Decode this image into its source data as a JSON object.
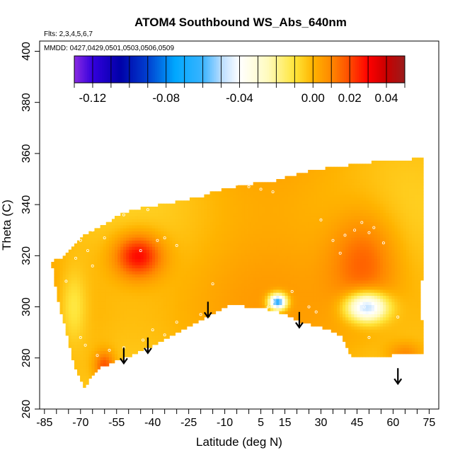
{
  "chart_data": {
    "type": "heatmap",
    "title": "ATOM4 Southbound WS_Abs_640nm",
    "xlabel": "Latitude (deg N)",
    "ylabel": "Theta (C)",
    "xlim": [
      -87,
      79
    ],
    "ylim": [
      260,
      404
    ],
    "x_ticks": [
      -85,
      -70,
      -55,
      -40,
      -25,
      -10,
      5,
      15,
      30,
      45,
      60,
      75
    ],
    "x_minor_step": 5,
    "y_ticks": [
      260,
      280,
      300,
      320,
      340,
      360,
      380,
      400
    ],
    "notes": [
      "Flts: 2,3,4,5,6,7",
      "MMDD: 0427,0429,0501,0503,0506,0509"
    ],
    "colorbar": {
      "range": [
        -0.13,
        0.05
      ],
      "ticks": [
        -0.12,
        -0.08,
        -0.04,
        0.0,
        0.02,
        0.04
      ],
      "tick_labels": [
        "-0.12",
        "-0.08",
        "-0.04",
        "0.00",
        "0.02",
        "0.04"
      ],
      "bins": [
        -0.13,
        -0.12,
        -0.11,
        -0.1,
        -0.09,
        -0.08,
        -0.07,
        -0.06,
        -0.05,
        -0.04,
        -0.03,
        -0.02,
        -0.01,
        0.0,
        0.01,
        0.02,
        0.03,
        0.04,
        0.05
      ],
      "stops": [
        {
          "v": -0.13,
          "c": "#8a2be2"
        },
        {
          "v": -0.12,
          "c": "#3300dd"
        },
        {
          "v": -0.105,
          "c": "#0000a8"
        },
        {
          "v": -0.09,
          "c": "#0040d0"
        },
        {
          "v": -0.075,
          "c": "#00a8ff"
        },
        {
          "v": -0.06,
          "c": "#3ab4ff"
        },
        {
          "v": -0.05,
          "c": "#b8dcff"
        },
        {
          "v": -0.04,
          "c": "#ffffff"
        },
        {
          "v": -0.025,
          "c": "#fffbc0"
        },
        {
          "v": -0.01,
          "c": "#ffe53a"
        },
        {
          "v": 0.0,
          "c": "#ffb300"
        },
        {
          "v": 0.01,
          "c": "#ff8800"
        },
        {
          "v": 0.02,
          "c": "#ff4a00"
        },
        {
          "v": 0.03,
          "c": "#ff0000"
        },
        {
          "v": 0.04,
          "c": "#c80000"
        },
        {
          "v": 0.05,
          "c": "#9a1c1c"
        }
      ]
    },
    "data_region": [
      [
        -82,
        318
      ],
      [
        -78,
        319
      ],
      [
        -75,
        322
      ],
      [
        -72,
        325
      ],
      [
        -69,
        328
      ],
      [
        -63,
        331
      ],
      [
        -57,
        334
      ],
      [
        -52,
        337
      ],
      [
        -43,
        339
      ],
      [
        -30,
        341
      ],
      [
        -20,
        343
      ],
      [
        -15,
        345
      ],
      [
        -10,
        346
      ],
      [
        0,
        348
      ],
      [
        10,
        349
      ],
      [
        20,
        352
      ],
      [
        30,
        354
      ],
      [
        40,
        355
      ],
      [
        45,
        356
      ],
      [
        55,
        357
      ],
      [
        64,
        357
      ],
      [
        69,
        358
      ],
      [
        72,
        358
      ],
      [
        73,
        330
      ],
      [
        72,
        310
      ],
      [
        72,
        295
      ],
      [
        73,
        290
      ],
      [
        73,
        281
      ],
      [
        60,
        281
      ],
      [
        48,
        280
      ],
      [
        43,
        280
      ],
      [
        38,
        289
      ],
      [
        30,
        292
      ],
      [
        22,
        294
      ],
      [
        15,
        297
      ],
      [
        8,
        299
      ],
      [
        0,
        300
      ],
      [
        -8,
        301
      ],
      [
        -15,
        297
      ],
      [
        -25,
        292
      ],
      [
        -35,
        287
      ],
      [
        -42,
        284
      ],
      [
        -49,
        281
      ],
      [
        -55,
        279
      ],
      [
        -62,
        276
      ],
      [
        -66,
        272
      ],
      [
        -68,
        268
      ],
      [
        -72,
        275
      ],
      [
        -76,
        290
      ],
      [
        -80,
        305
      ]
    ],
    "field": {
      "background": 0.0,
      "features": [
        {
          "x": -46,
          "y": 320,
          "amp": 0.033,
          "sx": 7,
          "sy": 6
        },
        {
          "x": -60,
          "y": 277,
          "amp": 0.022,
          "sx": 3,
          "sy": 4
        },
        {
          "x": 48,
          "y": 318,
          "amp": 0.018,
          "sx": 10,
          "sy": 14
        },
        {
          "x": 12,
          "y": 302,
          "amp": -0.07,
          "sx": 2.6,
          "sy": 2.2
        },
        {
          "x": 49,
          "y": 300,
          "amp": -0.055,
          "sx": 6,
          "sy": 4
        },
        {
          "x": 65,
          "y": 282,
          "amp": 0.012,
          "sx": 5,
          "sy": 3
        },
        {
          "x": -73,
          "y": 300,
          "amp": -0.012,
          "sx": 4,
          "sy": 10
        }
      ]
    },
    "sample_points": [
      [
        -70,
        326
      ],
      [
        -65,
        330
      ],
      [
        -60,
        336
      ],
      [
        -52,
        336
      ],
      [
        -48,
        340
      ],
      [
        -42,
        338
      ],
      [
        -38,
        326
      ],
      [
        -35,
        327
      ],
      [
        -30,
        324
      ],
      [
        -45,
        322
      ],
      [
        -60,
        327
      ],
      [
        -67,
        322
      ],
      [
        -65,
        316
      ],
      [
        -72,
        319
      ],
      [
        -76,
        310
      ],
      [
        -80,
        300
      ],
      [
        -70,
        288
      ],
      [
        -68,
        285
      ],
      [
        -63,
        281
      ],
      [
        -58,
        283
      ],
      [
        -52,
        284
      ],
      [
        -44,
        287
      ],
      [
        -40,
        291
      ],
      [
        -35,
        289
      ],
      [
        -30,
        294
      ],
      [
        -20,
        297
      ],
      [
        -15,
        309
      ],
      [
        -5,
        348
      ],
      [
        0,
        347
      ],
      [
        5,
        346
      ],
      [
        10,
        345
      ],
      [
        18,
        306
      ],
      [
        25,
        300
      ],
      [
        28,
        298
      ],
      [
        30,
        334
      ],
      [
        35,
        326
      ],
      [
        38,
        321
      ],
      [
        40,
        328
      ],
      [
        44,
        330
      ],
      [
        47,
        333
      ],
      [
        50,
        329
      ],
      [
        52,
        331
      ],
      [
        56,
        325
      ],
      [
        48,
        300
      ],
      [
        50,
        288
      ],
      [
        68,
        280
      ],
      [
        62,
        296
      ],
      [
        8,
        300
      ],
      [
        10,
        302
      ]
    ],
    "arrows": [
      [
        -52,
        284
      ],
      [
        -42,
        288
      ],
      [
        -17,
        302
      ],
      [
        21,
        298
      ],
      [
        62,
        276
      ]
    ]
  }
}
